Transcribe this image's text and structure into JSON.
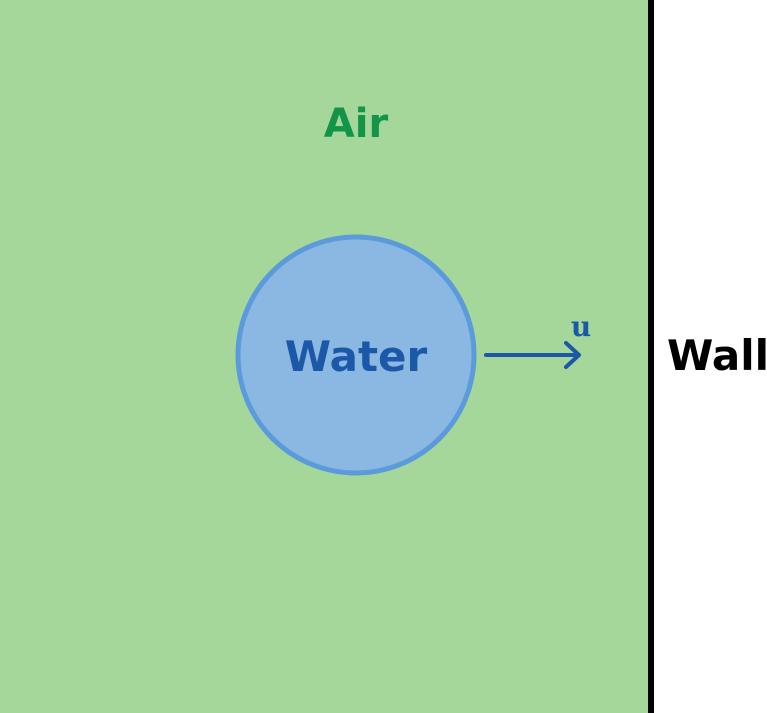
{
  "regions": {
    "air": {
      "label": "Air",
      "fill": "#a5d69a",
      "text_color": "#129549"
    },
    "water": {
      "label": "Water",
      "fill": "#8ab8e3",
      "stroke": "#5b9bdc",
      "text_color": "#1c58a8"
    }
  },
  "velocity": {
    "symbol": "u",
    "color": "#1c58a8"
  },
  "wall": {
    "label": "Wall",
    "color": "#000000"
  }
}
